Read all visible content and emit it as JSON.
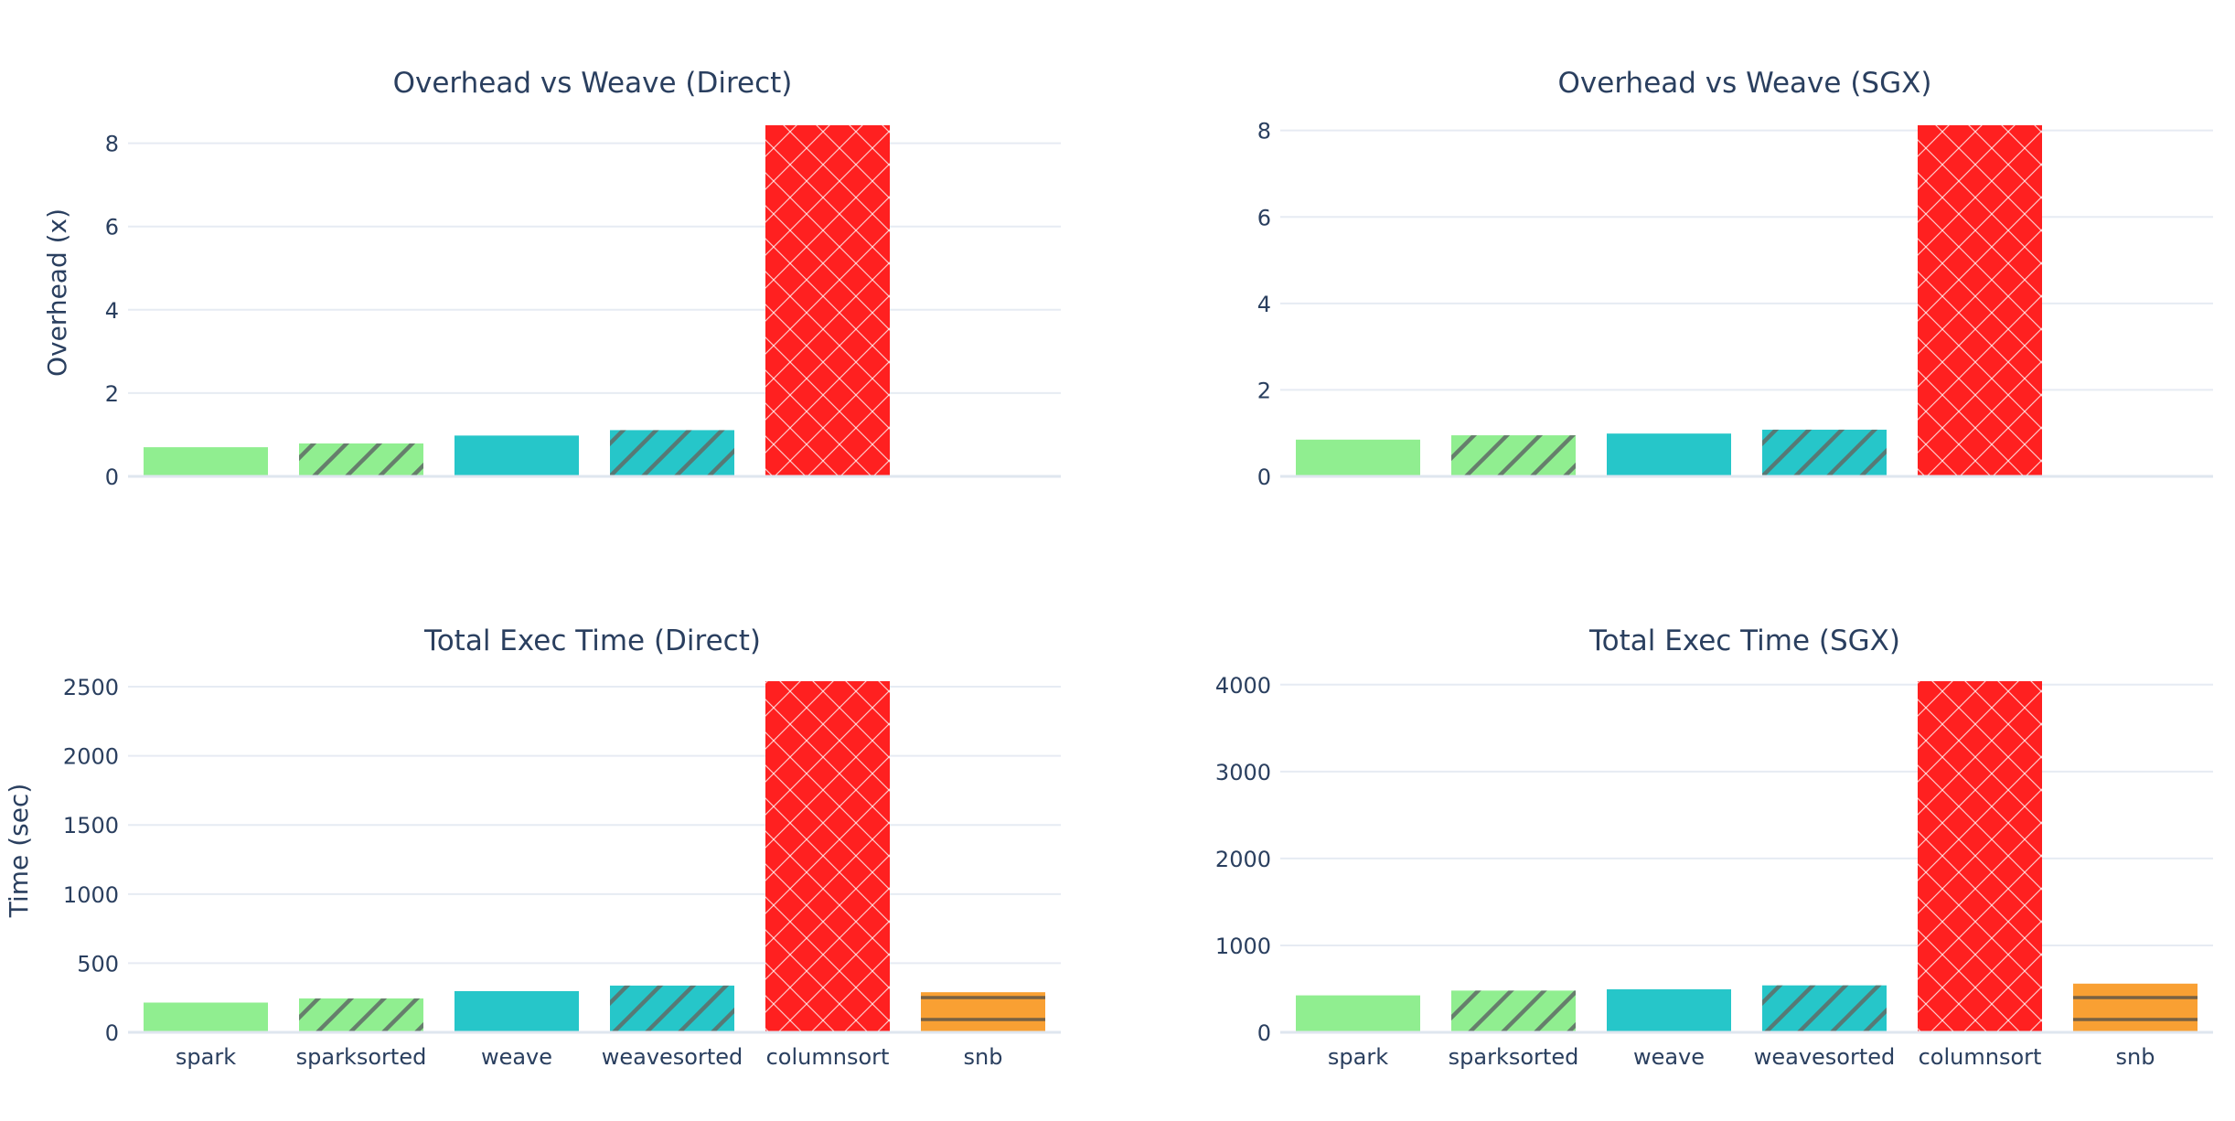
{
  "chart_data": [
    {
      "type": "bar",
      "title": "Overhead vs Weave (Direct)",
      "ylabel": "Overhead (x)",
      "categories": [
        "spark",
        "sparksorted",
        "weave",
        "weavesorted",
        "columnsort",
        "snb"
      ],
      "values": [
        0.7,
        0.79,
        0.98,
        1.11,
        8.43,
        null
      ],
      "ylim": [
        0,
        8.43
      ],
      "yticks": [
        0,
        2,
        4,
        6,
        8
      ],
      "show_xticklabels": false
    },
    {
      "type": "bar",
      "title": "Overhead vs Weave (SGX)",
      "ylabel": "",
      "categories": [
        "spark",
        "sparksorted",
        "weave",
        "weavesorted",
        "columnsort",
        "snb"
      ],
      "values": [
        0.85,
        0.95,
        0.99,
        1.08,
        8.12,
        null
      ],
      "ylim": [
        0,
        8.12
      ],
      "yticks": [
        0,
        2,
        4,
        6,
        8
      ],
      "show_xticklabels": false
    },
    {
      "type": "bar",
      "title": "Total Exec Time (Direct)",
      "ylabel": "Time (sec)",
      "categories": [
        "spark",
        "sparksorted",
        "weave",
        "weavesorted",
        "columnsort",
        "snb"
      ],
      "values": [
        215,
        245,
        298,
        338,
        2540,
        290
      ],
      "ylim": [
        0,
        2540
      ],
      "yticks": [
        0,
        500,
        1000,
        1500,
        2000,
        2500
      ],
      "show_xticklabels": true
    },
    {
      "type": "bar",
      "title": "Total Exec Time (SGX)",
      "ylabel": "",
      "categories": [
        "spark",
        "sparksorted",
        "weave",
        "weavesorted",
        "columnsort",
        "snb"
      ],
      "values": [
        425,
        480,
        495,
        540,
        4040,
        560
      ],
      "ylim": [
        0,
        4040
      ],
      "yticks": [
        0,
        1000,
        2000,
        3000,
        4000
      ],
      "show_xticklabels": true
    }
  ],
  "style": {
    "bar_colors": [
      "#90ee90",
      "#90ee90",
      "#26c6c9",
      "#26c6c9",
      "#ff2020",
      "#f9a033"
    ],
    "bar_patterns": [
      "none",
      "diagonal",
      "none",
      "diagonal",
      "crosshatch",
      "horizontal"
    ],
    "text_color": "#2a3f5f",
    "grid": true
  }
}
